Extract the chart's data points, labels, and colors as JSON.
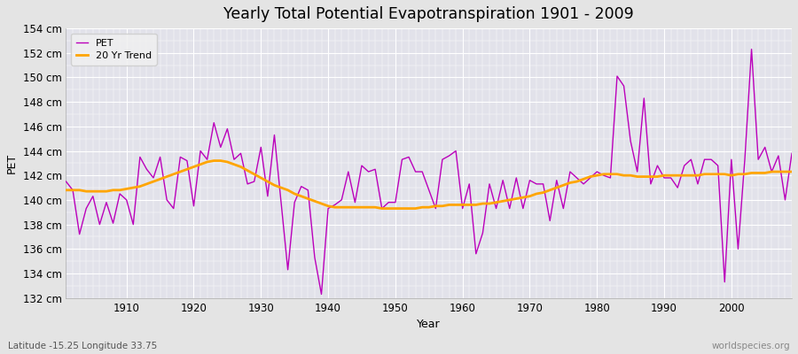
{
  "title": "Yearly Total Potential Evapotranspiration 1901 - 2009",
  "xlabel": "Year",
  "ylabel": "PET",
  "subtitle_left": "Latitude -15.25 Longitude 33.75",
  "subtitle_right": "worldspecies.org",
  "pet_color": "#bb00bb",
  "trend_color": "#ffa500",
  "background_color": "#e8e8e8",
  "plot_bg_color": "#e0e0e8",
  "ylim": [
    132,
    154
  ],
  "ytick_step": 2,
  "years": [
    1901,
    1902,
    1903,
    1904,
    1905,
    1906,
    1907,
    1908,
    1909,
    1910,
    1911,
    1912,
    1913,
    1914,
    1915,
    1916,
    1917,
    1918,
    1919,
    1920,
    1921,
    1922,
    1923,
    1924,
    1925,
    1926,
    1927,
    1928,
    1929,
    1930,
    1931,
    1932,
    1933,
    1934,
    1935,
    1936,
    1937,
    1938,
    1939,
    1940,
    1941,
    1942,
    1943,
    1944,
    1945,
    1946,
    1947,
    1948,
    1949,
    1950,
    1951,
    1952,
    1953,
    1954,
    1955,
    1956,
    1957,
    1958,
    1959,
    1960,
    1961,
    1962,
    1963,
    1964,
    1965,
    1966,
    1967,
    1968,
    1969,
    1970,
    1971,
    1972,
    1973,
    1974,
    1975,
    1976,
    1977,
    1978,
    1979,
    1980,
    1981,
    1982,
    1983,
    1984,
    1985,
    1986,
    1987,
    1988,
    1989,
    1990,
    1991,
    1992,
    1993,
    1994,
    1995,
    1996,
    1997,
    1998,
    1999,
    2000,
    2001,
    2002,
    2003,
    2004,
    2005,
    2006,
    2007,
    2008,
    2009
  ],
  "pet_values": [
    141.5,
    140.8,
    137.2,
    139.3,
    140.3,
    138.0,
    139.8,
    138.1,
    140.5,
    140.0,
    138.0,
    143.5,
    142.5,
    141.8,
    143.5,
    140.0,
    139.3,
    143.5,
    143.2,
    139.5,
    144.0,
    143.3,
    146.3,
    144.3,
    145.8,
    143.3,
    143.8,
    141.3,
    141.5,
    144.3,
    140.3,
    145.3,
    139.8,
    134.3,
    139.8,
    141.1,
    140.8,
    135.3,
    132.3,
    139.3,
    139.6,
    140.0,
    142.3,
    139.8,
    142.8,
    142.3,
    142.5,
    139.3,
    139.8,
    139.8,
    143.3,
    143.5,
    142.3,
    142.3,
    140.8,
    139.3,
    143.3,
    143.6,
    144.0,
    139.3,
    141.3,
    135.6,
    137.3,
    141.3,
    139.3,
    141.6,
    139.3,
    141.8,
    139.3,
    141.6,
    141.3,
    141.3,
    138.3,
    141.6,
    139.3,
    142.3,
    141.8,
    141.3,
    141.8,
    142.3,
    142.0,
    141.8,
    150.1,
    149.3,
    144.8,
    142.3,
    148.3,
    141.3,
    142.8,
    141.8,
    141.8,
    141.0,
    142.8,
    143.3,
    141.3,
    143.3,
    143.3,
    142.8,
    133.3,
    143.3,
    136.0,
    143.3,
    152.3,
    143.3,
    144.3,
    142.3,
    143.6,
    140.0,
    143.8
  ],
  "trend_values": [
    140.8,
    140.8,
    140.8,
    140.7,
    140.7,
    140.7,
    140.7,
    140.8,
    140.8,
    140.9,
    141.0,
    141.1,
    141.3,
    141.5,
    141.7,
    141.9,
    142.1,
    142.3,
    142.5,
    142.7,
    142.9,
    143.1,
    143.2,
    143.2,
    143.1,
    142.9,
    142.7,
    142.4,
    142.1,
    141.8,
    141.5,
    141.2,
    141.0,
    140.8,
    140.5,
    140.3,
    140.1,
    139.9,
    139.7,
    139.5,
    139.4,
    139.4,
    139.4,
    139.4,
    139.4,
    139.4,
    139.4,
    139.3,
    139.3,
    139.3,
    139.3,
    139.3,
    139.3,
    139.4,
    139.4,
    139.5,
    139.5,
    139.6,
    139.6,
    139.6,
    139.6,
    139.6,
    139.7,
    139.7,
    139.8,
    139.9,
    140.0,
    140.1,
    140.2,
    140.3,
    140.5,
    140.6,
    140.8,
    141.0,
    141.2,
    141.4,
    141.5,
    141.7,
    141.9,
    142.0,
    142.1,
    142.1,
    142.1,
    142.0,
    142.0,
    141.9,
    141.9,
    141.9,
    141.9,
    142.0,
    142.0,
    142.0,
    142.0,
    142.0,
    142.0,
    142.1,
    142.1,
    142.1,
    142.1,
    142.0,
    142.1,
    142.1,
    142.2,
    142.2,
    142.2,
    142.3,
    142.3,
    142.3,
    142.3
  ]
}
